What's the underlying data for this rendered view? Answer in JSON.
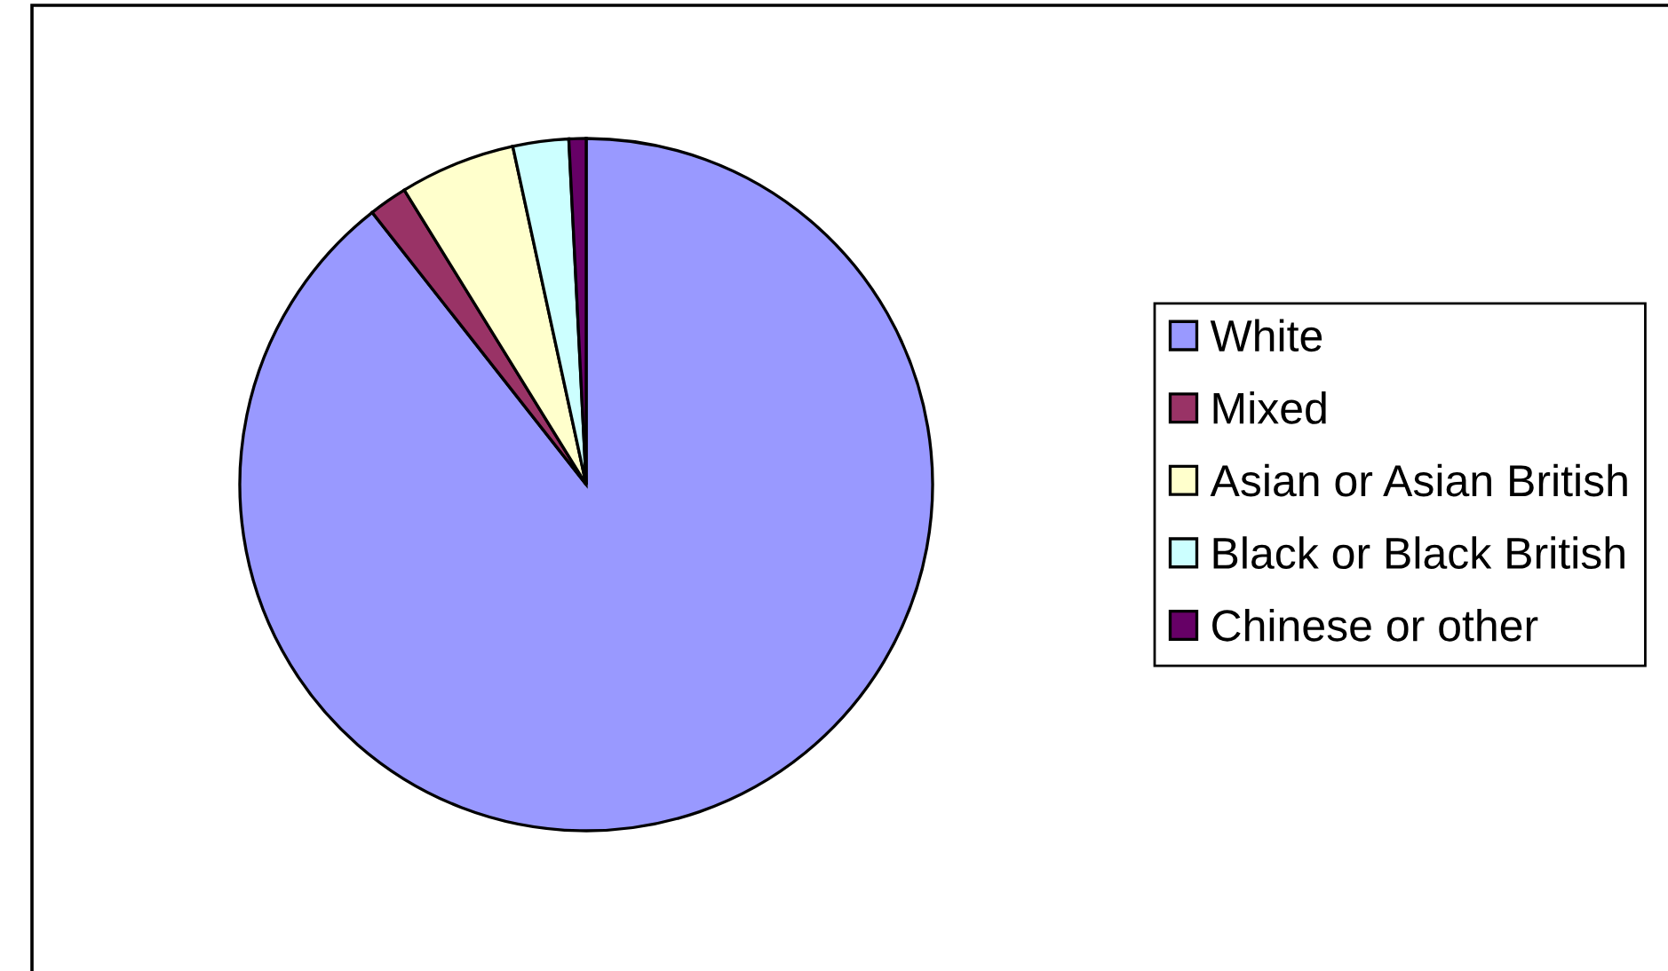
{
  "chart_data": {
    "type": "pie",
    "categories": [
      "White",
      "Mixed",
      "Asian or Asian British",
      "Black or Black British",
      "Chinese or other"
    ],
    "values": [
      89.4,
      1.8,
      5.4,
      2.6,
      0.8
    ],
    "colors": [
      "#9999ff",
      "#993366",
      "#ffffcc",
      "#ccffff",
      "#660066"
    ],
    "legend": "right"
  }
}
